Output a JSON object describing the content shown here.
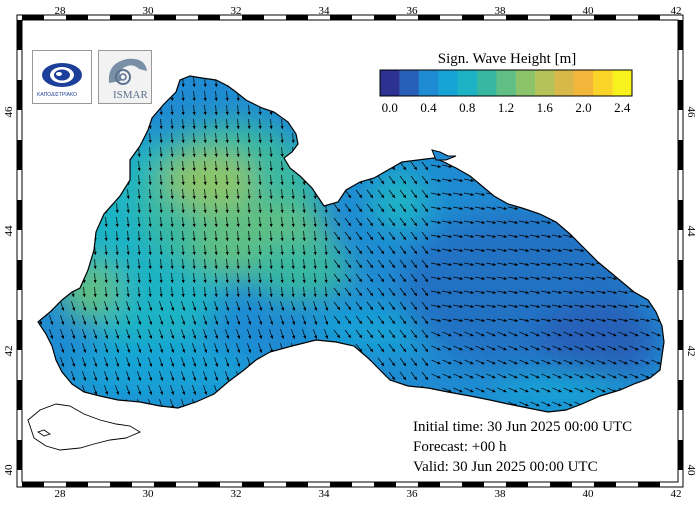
{
  "legend": {
    "title": "Sign. Wave Height [m]",
    "range": [
      0.0,
      2.6
    ],
    "tick_labels": [
      "0.0",
      "0.4",
      "0.8",
      "1.2",
      "1.6",
      "2.0",
      "2.4"
    ],
    "tick_values": [
      0.0,
      0.4,
      0.8,
      1.2,
      1.6,
      2.0,
      2.4
    ],
    "colors": [
      "#2d3191",
      "#2860b8",
      "#1f8bd2",
      "#17a3d6",
      "#1db3c4",
      "#38b8a2",
      "#5fbf84",
      "#8cc46b",
      "#b4c25a",
      "#d9b84a",
      "#f2b73a",
      "#fbd42a",
      "#f7f21d"
    ]
  },
  "axes": {
    "lon_labels": [
      "28",
      "30",
      "32",
      "34",
      "36",
      "38",
      "40",
      "42"
    ],
    "lat_labels_left": [
      "46",
      "44",
      "42",
      "40"
    ],
    "lat_labels_right": [
      "46",
      "44",
      "42",
      "40"
    ]
  },
  "logos": {
    "left": {
      "name": "kapodistrian-logo",
      "caption": "ΚΑΠΟΔΙΣΤΡΙΑΚΟ"
    },
    "right": {
      "name": "iasar-logo",
      "caption": "ISMAR"
    }
  },
  "forecast": {
    "initial": "Initial time: 30 Jun 2025 00:00 UTC",
    "forecast": "Forecast: +00 h",
    "valid": "Valid: 30 Jun 2025 00:00 UTC"
  },
  "colors": {
    "land": "#ffffff",
    "coast": "#000000",
    "arrow": "#000000",
    "frame": "#000000"
  },
  "icons": [
    "wave-arrow-icon"
  ]
}
